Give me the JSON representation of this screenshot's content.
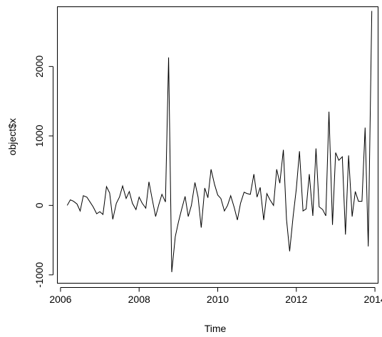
{
  "chart_data": {
    "type": "line",
    "title": "",
    "xlabel": "Time",
    "ylabel": "object$x",
    "xlim": [
      2005.92,
      2014.08
    ],
    "ylim": [
      -1120,
      2860
    ],
    "x_ticks": [
      2006,
      2008,
      2010,
      2012,
      2014
    ],
    "x_tick_labels": [
      "2006",
      "2008",
      "2010",
      "2012",
      "2014"
    ],
    "y_ticks": [
      -1000,
      0,
      1000,
      2000
    ],
    "y_tick_labels": [
      "-1000",
      "0",
      "1000",
      "2000"
    ],
    "grid": false,
    "legend": "none",
    "series": [
      {
        "color": "#000000",
        "x": [
          2006.17,
          2006.25,
          2006.33,
          2006.42,
          2006.5,
          2006.58,
          2006.67,
          2006.75,
          2006.83,
          2006.92,
          2007.0,
          2007.08,
          2007.17,
          2007.25,
          2007.33,
          2007.42,
          2007.5,
          2007.58,
          2007.67,
          2007.75,
          2007.83,
          2007.92,
          2008.0,
          2008.08,
          2008.17,
          2008.25,
          2008.33,
          2008.42,
          2008.5,
          2008.58,
          2008.67,
          2008.75,
          2008.83,
          2008.92,
          2009.0,
          2009.08,
          2009.17,
          2009.25,
          2009.33,
          2009.42,
          2009.5,
          2009.58,
          2009.67,
          2009.75,
          2009.83,
          2009.92,
          2010.0,
          2010.08,
          2010.17,
          2010.25,
          2010.33,
          2010.42,
          2010.5,
          2010.58,
          2010.67,
          2010.75,
          2010.83,
          2010.92,
          2011.0,
          2011.08,
          2011.17,
          2011.25,
          2011.33,
          2011.42,
          2011.5,
          2011.58,
          2011.67,
          2011.75,
          2011.83,
          2011.92,
          2012.0,
          2012.08,
          2012.17,
          2012.25,
          2012.33,
          2012.42,
          2012.5,
          2012.58,
          2012.67,
          2012.75,
          2012.83,
          2012.92,
          2013.0,
          2013.08,
          2013.17,
          2013.25,
          2013.33,
          2013.42,
          2013.5,
          2013.58,
          2013.67,
          2013.75,
          2013.83,
          2013.92
        ],
        "values": [
          0,
          80,
          60,
          20,
          -80,
          140,
          120,
          50,
          -20,
          -120,
          -90,
          -130,
          270,
          180,
          -200,
          30,
          120,
          280,
          100,
          200,
          30,
          -60,
          120,
          30,
          -40,
          340,
          100,
          -160,
          10,
          160,
          50,
          2130,
          -960,
          -450,
          -240,
          -60,
          130,
          -160,
          0,
          330,
          120,
          -320,
          250,
          110,
          520,
          300,
          150,
          100,
          -80,
          0,
          140,
          -30,
          -210,
          30,
          190,
          170,
          160,
          450,
          120,
          260,
          -210,
          170,
          80,
          0,
          520,
          320,
          800,
          -200,
          -660,
          -150,
          240,
          780,
          -80,
          -50,
          450,
          -150,
          820,
          -20,
          -60,
          -150,
          1350,
          -280,
          760,
          650,
          700,
          -420,
          720,
          -160,
          200,
          60,
          60,
          1120,
          -590,
          2800
        ]
      }
    ]
  }
}
